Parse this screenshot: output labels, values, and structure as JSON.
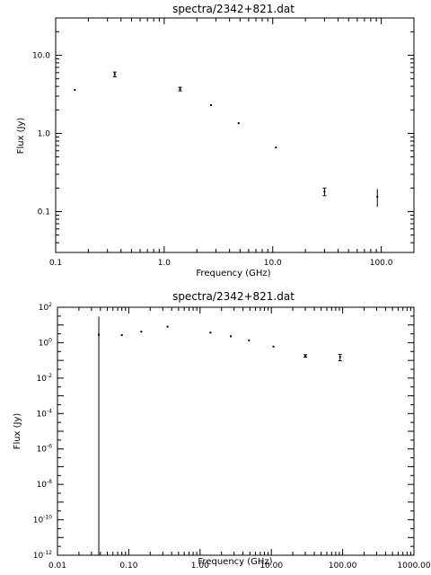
{
  "chart_data": [
    {
      "type": "scatter",
      "title": "spectra/2342+821.dat",
      "xlabel": "Frequency (GHz)",
      "ylabel": "Flux (Jy)",
      "xscale": "log",
      "yscale": "log",
      "xlim": [
        0.1,
        200
      ],
      "ylim": [
        0.03,
        30
      ],
      "xticks": [
        {
          "value": 0.1,
          "label": "0.1"
        },
        {
          "value": 1.0,
          "label": "1.0"
        },
        {
          "value": 10.0,
          "label": "10.0"
        },
        {
          "value": 100.0,
          "label": "100.0"
        }
      ],
      "yticks": [
        {
          "value": 0.1,
          "label": "0.1"
        },
        {
          "value": 1.0,
          "label": "1.0"
        },
        {
          "value": 10.0,
          "label": "10.0"
        }
      ],
      "grid": false,
      "points": [
        {
          "x": 0.15,
          "y": 3.6
        },
        {
          "x": 0.35,
          "y": 5.7,
          "err": 0.4
        },
        {
          "x": 1.4,
          "y": 3.7,
          "err": 0.2
        },
        {
          "x": 2.7,
          "y": 2.3
        },
        {
          "x": 4.85,
          "y": 1.35
        },
        {
          "x": 10.7,
          "y": 0.66
        },
        {
          "x": 30.0,
          "y": 0.18,
          "err": 0.02
        },
        {
          "x": 92.0,
          "y": 0.155,
          "err": 0.04
        }
      ]
    },
    {
      "type": "scatter",
      "title": "spectra/2342+821.dat",
      "xlabel": "Frequency (GHz)",
      "ylabel": "Flux (Jy)",
      "xscale": "log",
      "yscale": "log",
      "xlim": [
        0.01,
        1000
      ],
      "ylim": [
        1e-12,
        100
      ],
      "xticks": [
        {
          "value": 0.01,
          "label": "0.01"
        },
        {
          "value": 0.1,
          "label": "0.10"
        },
        {
          "value": 1,
          "label": "1.00"
        },
        {
          "value": 10,
          "label": "10.00"
        },
        {
          "value": 100,
          "label": "100.00"
        },
        {
          "value": 1000,
          "label": "1000.00"
        }
      ],
      "yticks": [
        {
          "value": 1e-12,
          "base": "10",
          "exp": "-12"
        },
        {
          "value": 1e-10,
          "base": "10",
          "exp": "-10"
        },
        {
          "value": 1e-08,
          "base": "10",
          "exp": "-8"
        },
        {
          "value": 1e-06,
          "base": "10",
          "exp": "-6"
        },
        {
          "value": 0.0001,
          "base": "10",
          "exp": "-4"
        },
        {
          "value": 0.01,
          "base": "10",
          "exp": "-2"
        },
        {
          "value": 1,
          "base": "10",
          "exp": "0"
        },
        {
          "value": 100,
          "base": "10",
          "exp": "2"
        }
      ],
      "grid": false,
      "points": [
        {
          "x": 0.038,
          "y": 2.8,
          "ylo": 1e-12,
          "yhi": 30
        },
        {
          "x": 0.08,
          "y": 2.7
        },
        {
          "x": 0.15,
          "y": 4.2
        },
        {
          "x": 0.35,
          "y": 8.0
        },
        {
          "x": 1.4,
          "y": 3.7
        },
        {
          "x": 2.7,
          "y": 2.3
        },
        {
          "x": 4.85,
          "y": 1.35
        },
        {
          "x": 10.7,
          "y": 0.6
        },
        {
          "x": 30.0,
          "y": 0.18,
          "err": 0.03
        },
        {
          "x": 92.0,
          "y": 0.155,
          "err": 0.06
        }
      ]
    }
  ]
}
